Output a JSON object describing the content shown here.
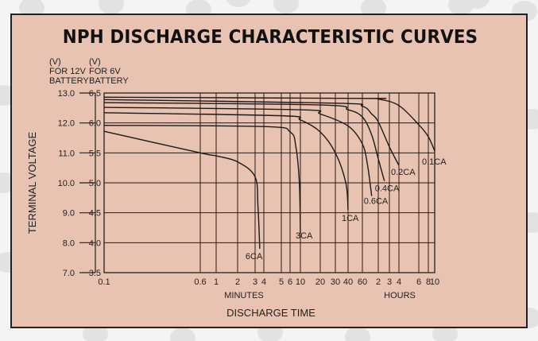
{
  "chart_data": {
    "type": "line",
    "title": "NPH DISCHARGE CHARACTERISTIC CURVES",
    "xlabel": "DISCHARGE TIME",
    "ylabel": "TERMINAL VOLTAGE",
    "x_unit_labels": {
      "minutes": "MINUTES",
      "hours": "HOURS"
    },
    "y_left_header": [
      "(V)",
      "FOR 12V",
      "BATTERY"
    ],
    "y_right_header": [
      "(V)",
      "FOR 6V",
      "BATTERY"
    ],
    "y_left_ticks": [
      "13.0",
      "12.0",
      "11.0",
      "10.0",
      "9.0",
      "8.0",
      "7.0"
    ],
    "y_right_ticks": [
      "6.5",
      "6.0",
      "5.5",
      "5.0",
      "4.5",
      "4.0",
      "3.5"
    ],
    "ylim": [
      3.5,
      6.5
    ],
    "x_ticks_minutes": [
      0.1,
      0.6,
      1,
      2,
      3,
      4,
      5,
      6,
      10,
      20,
      30,
      40,
      60,
      120,
      180,
      240,
      360,
      480,
      600
    ],
    "x_tick_labels": [
      "0.1",
      "0.6",
      "1",
      "2",
      "3",
      "4",
      "5",
      "6",
      "10",
      "20",
      "30",
      "40",
      "60",
      "2",
      "3",
      "4",
      "6",
      "8",
      "10"
    ],
    "xlim_minutes": [
      0.1,
      600
    ],
    "grid": true,
    "series": [
      {
        "name": "0.1CA",
        "points": [
          [
            0.1,
            6.43
          ],
          [
            60,
            6.41
          ],
          [
            120,
            6.4
          ],
          [
            240,
            6.29
          ],
          [
            360,
            5.97
          ],
          [
            480,
            5.77
          ],
          [
            600,
            5.53
          ]
        ]
      },
      {
        "name": "0.2CA",
        "points": [
          [
            0.1,
            6.39
          ],
          [
            30,
            6.33
          ],
          [
            60,
            6.28
          ],
          [
            90,
            6.15
          ],
          [
            120,
            6.02
          ],
          [
            180,
            5.6
          ],
          [
            240,
            5.29
          ]
        ]
      },
      {
        "name": "0.4CA",
        "points": [
          [
            0.1,
            6.34
          ],
          [
            20,
            6.3
          ],
          [
            40,
            6.22
          ],
          [
            60,
            6.1
          ],
          [
            90,
            5.8
          ],
          [
            120,
            5.4
          ],
          [
            150,
            5.03
          ]
        ]
      },
      {
        "name": "0.6CA",
        "points": [
          [
            0.1,
            6.26
          ],
          [
            10,
            6.22
          ],
          [
            20,
            6.15
          ],
          [
            40,
            5.95
          ],
          [
            60,
            5.65
          ],
          [
            75,
            5.3
          ],
          [
            90,
            4.78
          ]
        ]
      },
      {
        "name": "1CA",
        "points": [
          [
            0.1,
            6.17
          ],
          [
            5,
            6.12
          ],
          [
            10,
            6.05
          ],
          [
            20,
            5.85
          ],
          [
            30,
            5.5
          ],
          [
            38,
            5.0
          ],
          [
            40,
            4.55
          ]
        ]
      },
      {
        "name": "3CA",
        "points": [
          [
            0.1,
            5.96
          ],
          [
            4,
            5.94
          ],
          [
            6,
            5.85
          ],
          [
            8,
            5.6
          ],
          [
            9.5,
            5.0
          ],
          [
            10,
            4.15
          ]
        ]
      },
      {
        "name": "6CA",
        "points": [
          [
            0.1,
            5.86
          ],
          [
            0.6,
            5.5
          ],
          [
            1,
            5.45
          ],
          [
            2,
            5.35
          ],
          [
            3,
            5.1
          ],
          [
            3.3,
            4.6
          ],
          [
            3.5,
            3.9
          ]
        ]
      }
    ],
    "line_color": "#1a1a1a",
    "background_color": "#e9c3b1"
  }
}
